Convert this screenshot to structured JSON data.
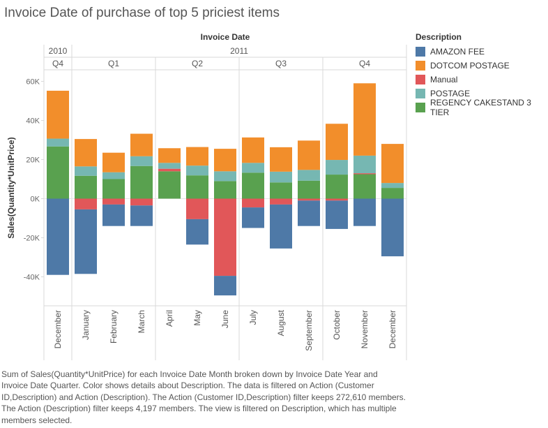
{
  "title": "Invoice Date of purchase of top 5 priciest items",
  "caption": "Sum of Sales(Quantity*UnitPrice) for each Invoice Date Month broken down by Invoice Date Year and Invoice Date Quarter.  Color shows details about Description. The data is filtered on Action (Customer ID,Description) and Action (Description). The Action (Customer ID,Description) filter keeps 272,610 members. The Action (Description) filter keeps 4,197 members. The view is filtered on Description, which has multiple members selected.",
  "colors": {
    "AMAZON FEE": "#4e79a7",
    "DOTCOM POSTAGE": "#f28e2b",
    "Manual": "#e15759",
    "POSTAGE": "#76b7b2",
    "REGENCY CAKESTAND 3 TIER": "#59a14f"
  },
  "chart_data": {
    "type": "bar",
    "stacked": true,
    "title": "Invoice Date of purchase of top 5 priciest items",
    "xlabel": "Invoice Date",
    "ylabel": "Sales(Quantity*UnitPrice)",
    "ylim": [
      -50000,
      65000
    ],
    "yticks": [
      60000,
      40000,
      20000,
      0,
      -20000,
      -40000
    ],
    "ytick_labels": [
      "60K",
      "40K",
      "20K",
      "0K",
      "-20K",
      "-40K"
    ],
    "years": [
      {
        "label": "2010",
        "quarters": [
          {
            "label": "Q4",
            "months": [
              "December"
            ]
          }
        ]
      },
      {
        "label": "2011",
        "quarters": [
          {
            "label": "Q1",
            "months": [
              "January",
              "February",
              "March"
            ]
          },
          {
            "label": "Q2",
            "months": [
              "April",
              "May",
              "June"
            ]
          },
          {
            "label": "Q3",
            "months": [
              "July",
              "August",
              "September"
            ]
          },
          {
            "label": "Q4",
            "months": [
              "October",
              "November",
              "December"
            ]
          }
        ]
      }
    ],
    "categories": [
      "December",
      "January",
      "February",
      "March",
      "April",
      "May",
      "June",
      "July",
      "August",
      "September",
      "October",
      "November",
      "December"
    ],
    "legend_title": "Description",
    "legend_position": "right",
    "series": [
      {
        "name": "AMAZON FEE",
        "values": [
          -39000,
          -33000,
          -11000,
          -10500,
          0,
          -13000,
          -10000,
          -10500,
          -22500,
          -13000,
          -14500,
          -14000,
          -29500
        ]
      },
      {
        "name": "DOTCOM POSTAGE",
        "values": [
          24500,
          14000,
          10000,
          11500,
          7500,
          9500,
          11500,
          13000,
          12500,
          15000,
          18500,
          37000,
          20000
        ]
      },
      {
        "name": "Manual",
        "values": [
          0,
          -5500,
          -3000,
          -3500,
          1300,
          -10500,
          -39500,
          -4500,
          -3000,
          -1000,
          -1000,
          500,
          0
        ]
      },
      {
        "name": "POSTAGE",
        "values": [
          4000,
          4800,
          3500,
          5000,
          3000,
          5000,
          5000,
          5000,
          5500,
          5500,
          7500,
          9000,
          2500
        ]
      },
      {
        "name": "REGENCY CAKESTAND 3 TIER",
        "values": [
          26700,
          11700,
          10000,
          16700,
          14000,
          11900,
          9000,
          13300,
          8300,
          9200,
          12300,
          12500,
          5500
        ]
      }
    ],
    "stack_order_positive": [
      "REGENCY CAKESTAND 3 TIER",
      "Manual",
      "POSTAGE",
      "DOTCOM POSTAGE",
      "AMAZON FEE"
    ],
    "stack_order_negative": [
      "Manual",
      "AMAZON FEE",
      "REGENCY CAKESTAND 3 TIER",
      "POSTAGE",
      "DOTCOM POSTAGE"
    ],
    "grid": false
  }
}
